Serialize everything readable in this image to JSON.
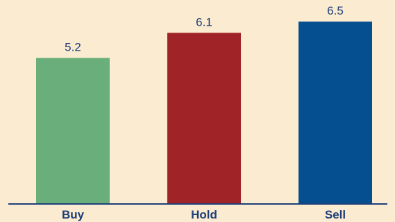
{
  "chart_data": {
    "type": "bar",
    "categories": [
      "Buy",
      "Hold",
      "Sell"
    ],
    "values": [
      5.2,
      6.1,
      6.5
    ],
    "value_labels": [
      "5.2",
      "6.1",
      "6.5"
    ],
    "colors": [
      "#6aae7c",
      "#a02327",
      "#054f90"
    ],
    "ylim": [
      0,
      7.2
    ],
    "grid": false,
    "legend": "none",
    "title": "",
    "xlabel": "",
    "ylabel": ""
  },
  "style": {
    "background": "#fbebd0",
    "axis_color": "#1d3f78",
    "label_color": "#1d3f78"
  }
}
